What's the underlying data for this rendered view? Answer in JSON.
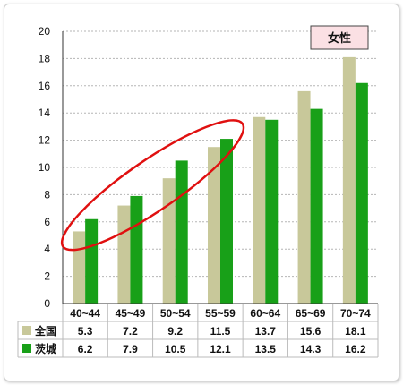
{
  "chart_data": {
    "type": "bar",
    "badge": "女性",
    "categories": [
      "40~44",
      "45~49",
      "50~54",
      "55~59",
      "60~64",
      "65~69",
      "70~74"
    ],
    "series": [
      {
        "name": "全国",
        "color": "#c8c89a",
        "values": [
          5.3,
          7.2,
          9.2,
          11.5,
          13.7,
          15.6,
          18.1
        ]
      },
      {
        "name": "茨城",
        "color": "#18a018",
        "values": [
          6.2,
          7.9,
          10.5,
          12.1,
          13.5,
          14.3,
          16.2
        ]
      }
    ],
    "y_ticks": [
      "0",
      "2",
      "4",
      "6",
      "8",
      "10",
      "12",
      "14",
      "16",
      "18",
      "20"
    ],
    "ylim": [
      0,
      20
    ],
    "grid": true,
    "table": {
      "rows": [
        {
          "label": "全国",
          "cells": [
            "5.3",
            "7.2",
            "9.2",
            "11.5",
            "13.7",
            "15.6",
            "18.1"
          ]
        },
        {
          "label": "茨城",
          "cells": [
            "6.2",
            "7.9",
            "10.5",
            "12.1",
            "13.5",
            "14.3",
            "16.2"
          ]
        }
      ]
    },
    "highlight": {
      "shape": "ellipse",
      "color": "#e01010",
      "covers_categories": [
        "40~44",
        "45~49",
        "50~54",
        "55~59"
      ]
    }
  }
}
